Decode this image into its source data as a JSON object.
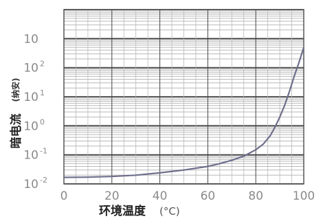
{
  "chart_data": {
    "type": "line",
    "title": "",
    "xlabel": "环境温度",
    "xlabel_unit": "(°C)",
    "ylabel": "暗电流",
    "ylabel_unit": "(纳安)",
    "xlim": [
      0,
      100
    ],
    "ylim": [
      0.01,
      10000
    ],
    "y_scale": "log",
    "grid": true,
    "x_ticks": [
      "0",
      "20",
      "40",
      "60",
      "80",
      "100"
    ],
    "y_ticks": [
      {
        "base": "10",
        "exp": "-2"
      },
      {
        "base": "10",
        "exp": "-1"
      },
      {
        "base": "10",
        "exp": "0"
      },
      {
        "base": "10",
        "exp": "1"
      },
      {
        "base": "10",
        "exp": "2"
      },
      {
        "base": "10",
        "exp": ""
      }
    ],
    "series": [
      {
        "x": [
          0,
          10,
          20,
          30,
          40,
          50,
          60,
          65,
          70,
          75,
          80,
          83,
          86,
          88,
          90,
          92,
          94,
          96,
          98,
          100
        ],
        "y": [
          0.0168,
          0.017,
          0.018,
          0.02,
          0.024,
          0.03,
          0.04,
          0.05,
          0.065,
          0.09,
          0.15,
          0.23,
          0.45,
          0.9,
          2,
          5,
          15,
          50,
          150,
          500
        ]
      }
    ]
  },
  "colors": {
    "curve": "#6e6e8c",
    "grid_major": "#444444",
    "grid_minor": "#b8b8b8",
    "axis": "#555555"
  }
}
